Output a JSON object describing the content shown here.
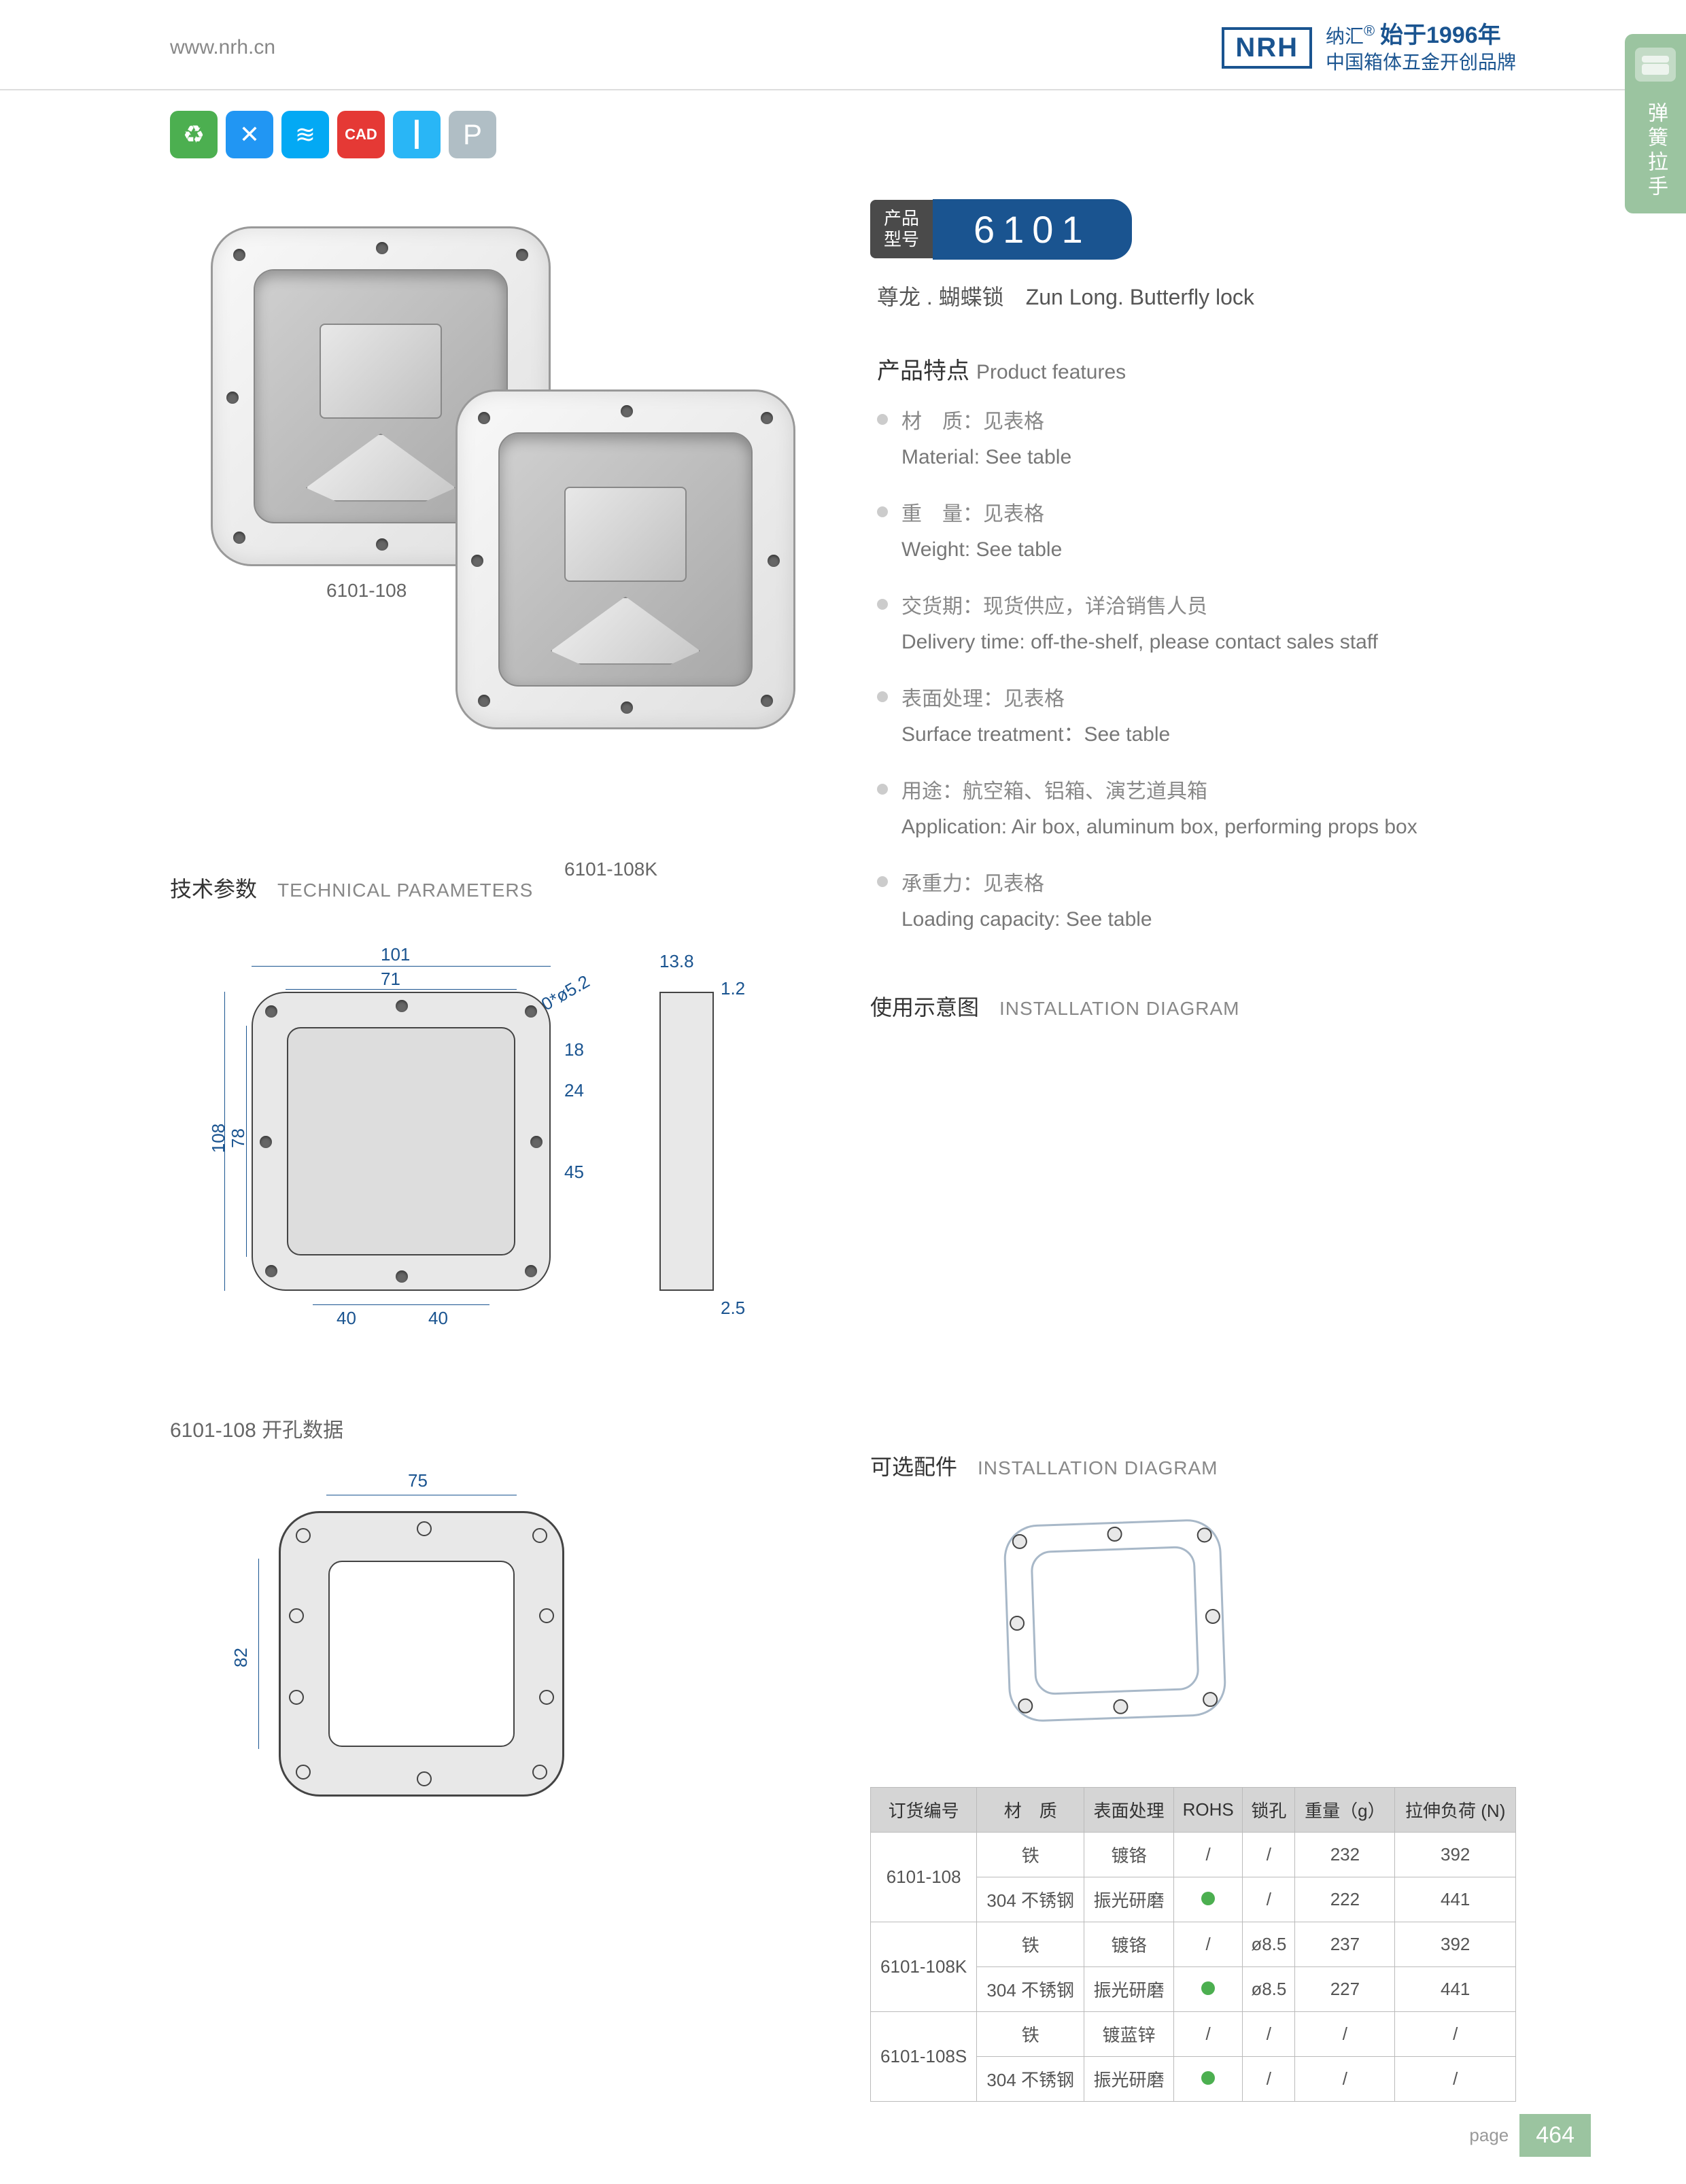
{
  "header": {
    "url": "www.nrh.cn",
    "logo": "NRH",
    "brand_cn": "纳汇",
    "year_prefix": "始于",
    "year": "1996年",
    "tagline": "中国箱体五金开创品牌"
  },
  "sidetab": {
    "label": "弹簧拉手"
  },
  "icons": {
    "cad": "CAD",
    "p": "P"
  },
  "product": {
    "img1_label": "6101-108",
    "img2_label": "6101-108K",
    "model_label_l1": "产品",
    "model_label_l2": "型号",
    "model_num": "6101",
    "subtitle_cn": "尊龙 . 蝴蝶锁",
    "subtitle_en": "Zun Long. Butterfly lock"
  },
  "features": {
    "title_cn": "产品特点",
    "title_en": "Product features",
    "items": [
      {
        "cn": "材　质：见表格",
        "en": "Material: See table"
      },
      {
        "cn": "重　量：见表格",
        "en": "Weight: See table"
      },
      {
        "cn": "交货期：现货供应，详洽销售人员",
        "en": "Delivery time: off-the-shelf, please contact sales staff"
      },
      {
        "cn": "表面处理：见表格",
        "en": "Surface treatment：See table"
      },
      {
        "cn": "用途：航空箱、铝箱、演艺道具箱",
        "en": "Application: Air box, aluminum box, performing props box"
      },
      {
        "cn": "承重力：见表格",
        "en": "Loading capacity: See table"
      }
    ]
  },
  "sections": {
    "tech_cn": "技术参数",
    "tech_en": "TECHNICAL PARAMETERS",
    "install_cn": "使用示意图",
    "install_en": "INSTALLATION DIAGRAM",
    "hole_label": "6101-108 开孔数据",
    "acc_cn": "可选配件",
    "acc_en": "INSTALLATION DIAGRAM"
  },
  "dimensions": {
    "outer_w": "101",
    "inner_w": "71",
    "outer_h": "108",
    "inner_h": "78",
    "holes": "10*ø5.2",
    "d18": "18",
    "d24": "24",
    "d45": "45",
    "d40a": "40",
    "d40b": "40",
    "side_w": "13.8",
    "side_t": "1.2",
    "side_b": "2.5",
    "hole_w": "75",
    "hole_h": "82"
  },
  "table": {
    "headers": [
      "订货编号",
      "材　质",
      "表面处理",
      "ROHS",
      "锁孔",
      "重量（g）",
      "拉伸负荷 (N)"
    ],
    "rows": [
      {
        "code": "6101-108",
        "r": [
          {
            "mat": "铁",
            "surf": "镀铬",
            "rohs": "/",
            "lock": "/",
            "wt": "232",
            "load": "392"
          },
          {
            "mat": "304 不锈钢",
            "surf": "振光研磨",
            "rohs": "●",
            "lock": "/",
            "wt": "222",
            "load": "441"
          }
        ]
      },
      {
        "code": "6101-108K",
        "r": [
          {
            "mat": "铁",
            "surf": "镀铬",
            "rohs": "/",
            "lock": "ø8.5",
            "wt": "237",
            "load": "392"
          },
          {
            "mat": "304 不锈钢",
            "surf": "振光研磨",
            "rohs": "●",
            "lock": "ø8.5",
            "wt": "227",
            "load": "441"
          }
        ]
      },
      {
        "code": "6101-108S",
        "r": [
          {
            "mat": "铁",
            "surf": "镀蓝锌",
            "rohs": "/",
            "lock": "/",
            "wt": "/",
            "load": "/"
          },
          {
            "mat": "304 不锈钢",
            "surf": "振光研磨",
            "rohs": "●",
            "lock": "/",
            "wt": "/",
            "load": "/"
          }
        ]
      }
    ]
  },
  "footer": {
    "label": "page",
    "num": "464"
  }
}
